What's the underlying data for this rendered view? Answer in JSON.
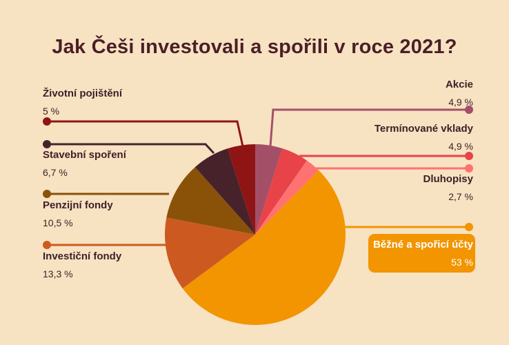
{
  "chart_data": {
    "type": "pie",
    "title": "Jak Češi investovali a spořili v roce 2021?",
    "slices": [
      {
        "name": "Běžné a spořicí účty",
        "value": 53,
        "label": "53 %",
        "color": "#f29500"
      },
      {
        "name": "Investiční fondy",
        "value": 13.3,
        "label": "13,3 %",
        "color": "#cc5a20"
      },
      {
        "name": "Penzijní fondy",
        "value": 10.5,
        "label": "10,5 %",
        "color": "#8a5209"
      },
      {
        "name": "Stavební spoření",
        "value": 6.7,
        "label": "6,7 %",
        "color": "#47222b"
      },
      {
        "name": "Životní pojištění",
        "value": 5,
        "label": "5 %",
        "color": "#8f1515"
      },
      {
        "name": "Akcie",
        "value": 4.9,
        "label": "4,9 %",
        "color": "#a44f68"
      },
      {
        "name": "Termínované vklady",
        "value": 4.9,
        "label": "4,9 %",
        "color": "#e84349"
      },
      {
        "name": "Dluhopisy",
        "value": 2.7,
        "label": "2,7 %",
        "color": "#ff7272"
      }
    ]
  }
}
